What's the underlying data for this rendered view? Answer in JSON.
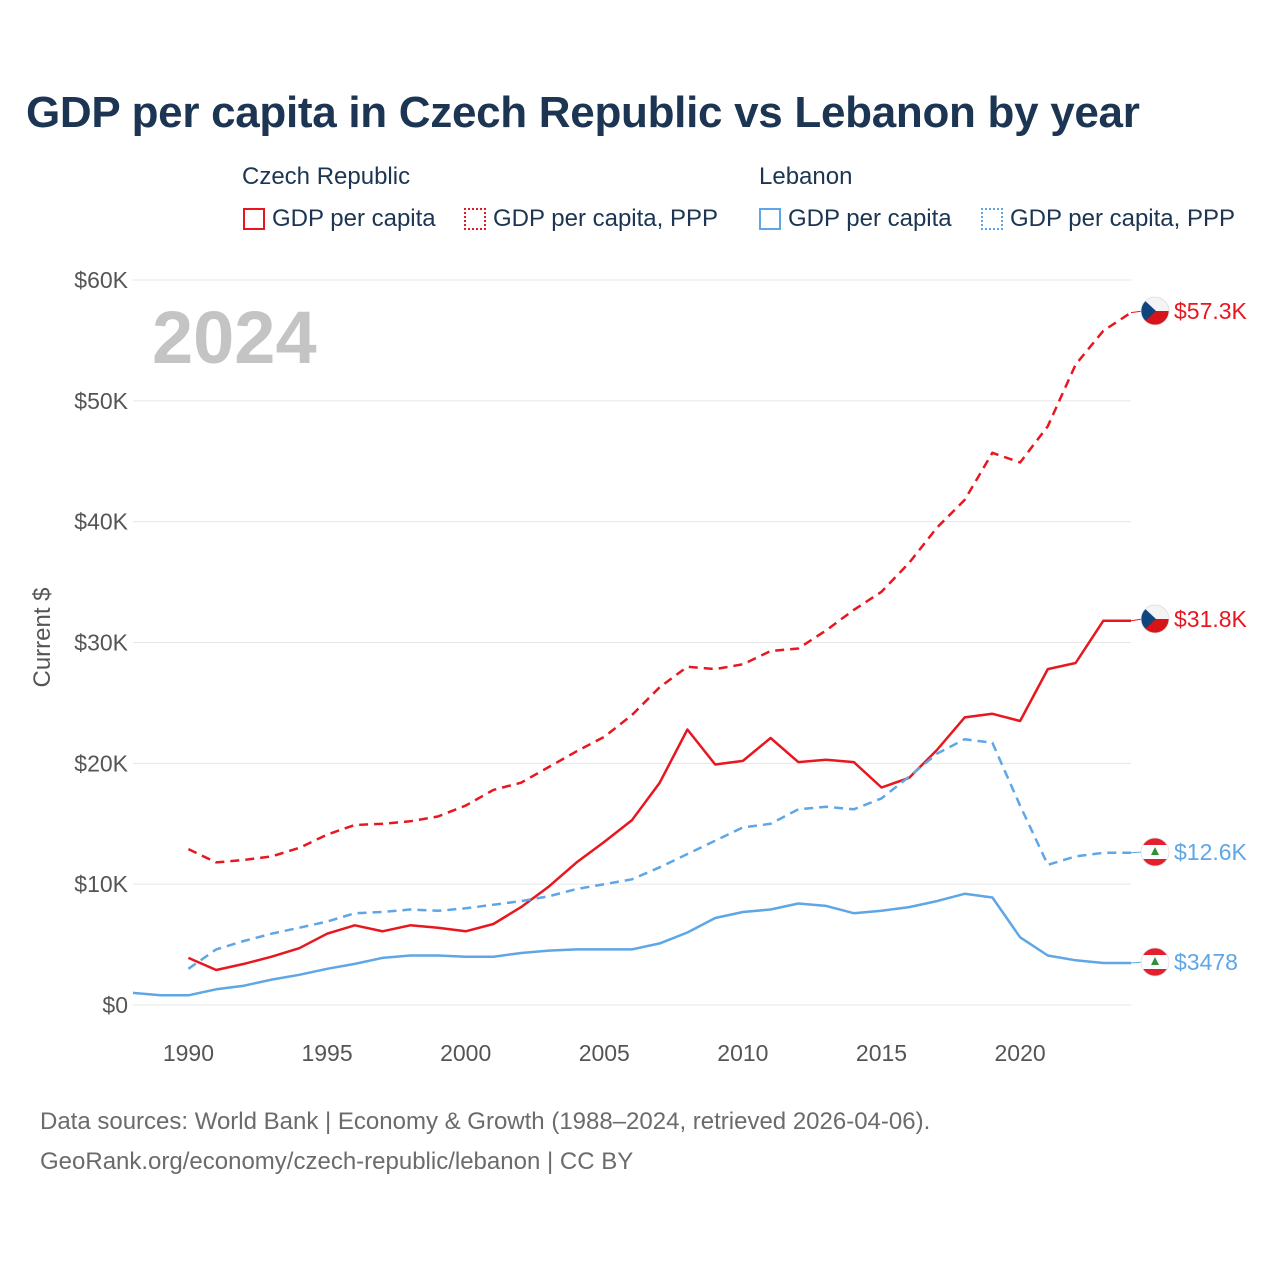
{
  "title": "GDP per capita in Czech Republic vs Lebanon by year",
  "colors": {
    "czech": "#e8171f",
    "lebanon": "#5ea6e6",
    "text": "#1b3553",
    "axis": "#555555",
    "grid": "#e6e6e6",
    "year_watermark": "#c4c4c4"
  },
  "legend": {
    "groups": [
      {
        "title": "Czech Republic",
        "items": [
          {
            "label": "GDP per capita",
            "style": "solid"
          },
          {
            "label": "GDP per capita, PPP",
            "style": "dotted"
          }
        ]
      },
      {
        "title": "Lebanon",
        "items": [
          {
            "label": "GDP per capita",
            "style": "solid"
          },
          {
            "label": "GDP per capita, PPP",
            "style": "dotted"
          }
        ]
      }
    ]
  },
  "year_watermark": "2024",
  "footer": {
    "line1": "Data sources: World Bank | Economy & Growth (1988–2024, retrieved 2026-04-06).",
    "line2": "GeoRank.org/economy/czech-republic/lebanon | CC BY"
  },
  "chart_data": {
    "type": "line",
    "title": "GDP per capita in Czech Republic vs Lebanon by year",
    "xlabel": "",
    "ylabel": "Current $",
    "xlim": [
      1988,
      2024
    ],
    "ylim": [
      0,
      60000
    ],
    "x_ticks": [
      1990,
      1995,
      2000,
      2005,
      2010,
      2015,
      2020
    ],
    "y_ticks": [
      0,
      10000,
      20000,
      30000,
      40000,
      50000,
      60000
    ],
    "y_tick_labels": [
      "$0",
      "$10K",
      "$20K",
      "$30K",
      "$40K",
      "$50K",
      "$60K"
    ],
    "grid": true,
    "series": [
      {
        "name": "Czech Republic — GDP per capita, PPP",
        "country": "czech",
        "dash": "dashed",
        "x": [
          1990,
          1991,
          1992,
          1993,
          1994,
          1995,
          1996,
          1997,
          1998,
          1999,
          2000,
          2001,
          2002,
          2003,
          2004,
          2005,
          2006,
          2007,
          2008,
          2009,
          2010,
          2011,
          2012,
          2013,
          2014,
          2015,
          2016,
          2017,
          2018,
          2019,
          2020,
          2021,
          2022,
          2023,
          2024
        ],
        "values": [
          12900,
          11800,
          12000,
          12300,
          13000,
          14100,
          14900,
          15000,
          15200,
          15600,
          16500,
          17800,
          18400,
          19700,
          21000,
          22200,
          24000,
          26300,
          28000,
          27800,
          28200,
          29300,
          29500,
          31000,
          32700,
          34200,
          36600,
          39500,
          41800,
          45700,
          44900,
          47900,
          53000,
          55800,
          57300
        ],
        "end_label": "$57.3K"
      },
      {
        "name": "Czech Republic — GDP per capita",
        "country": "czech",
        "dash": "solid",
        "x": [
          1990,
          1991,
          1992,
          1993,
          1994,
          1995,
          1996,
          1997,
          1998,
          1999,
          2000,
          2001,
          2002,
          2003,
          2004,
          2005,
          2006,
          2007,
          2008,
          2009,
          2010,
          2011,
          2012,
          2013,
          2014,
          2015,
          2016,
          2017,
          2018,
          2019,
          2020,
          2021,
          2022,
          2023,
          2024
        ],
        "values": [
          3900,
          2900,
          3400,
          4000,
          4700,
          5900,
          6600,
          6100,
          6600,
          6400,
          6100,
          6700,
          8100,
          9800,
          11800,
          13500,
          15300,
          18400,
          22800,
          19900,
          20200,
          22100,
          20100,
          20300,
          20100,
          18000,
          18800,
          21100,
          23800,
          24100,
          23500,
          27800,
          28300,
          31800,
          31800
        ],
        "end_label": "$31.8K"
      },
      {
        "name": "Lebanon — GDP per capita, PPP",
        "country": "lebanon",
        "dash": "dashed",
        "x": [
          1990,
          1991,
          1992,
          1993,
          1994,
          1995,
          1996,
          1997,
          1998,
          1999,
          2000,
          2001,
          2002,
          2003,
          2004,
          2005,
          2006,
          2007,
          2008,
          2009,
          2010,
          2011,
          2012,
          2013,
          2014,
          2015,
          2016,
          2017,
          2018,
          2019,
          2020,
          2021,
          2022,
          2023,
          2024
        ],
        "values": [
          3000,
          4600,
          5300,
          5900,
          6400,
          6900,
          7600,
          7700,
          7900,
          7800,
          8000,
          8300,
          8600,
          9000,
          9600,
          10000,
          10400,
          11400,
          12500,
          13600,
          14700,
          15000,
          16200,
          16400,
          16200,
          17100,
          18900,
          20800,
          22000,
          21700,
          16500,
          11600,
          12300,
          12600,
          12600
        ],
        "end_label": "$12.6K"
      },
      {
        "name": "Lebanon — GDP per capita",
        "country": "lebanon",
        "dash": "solid",
        "x": [
          1988,
          1989,
          1990,
          1991,
          1992,
          1993,
          1994,
          1995,
          1996,
          1997,
          1998,
          1999,
          2000,
          2001,
          2002,
          2003,
          2004,
          2005,
          2006,
          2007,
          2008,
          2009,
          2010,
          2011,
          2012,
          2013,
          2014,
          2015,
          2016,
          2017,
          2018,
          2019,
          2020,
          2021,
          2022,
          2023,
          2024
        ],
        "values": [
          1000,
          800,
          800,
          1300,
          1600,
          2100,
          2500,
          3000,
          3400,
          3900,
          4100,
          4100,
          4000,
          4000,
          4300,
          4500,
          4600,
          4600,
          4600,
          5100,
          6000,
          7200,
          7700,
          7900,
          8400,
          8200,
          7600,
          7800,
          8100,
          8600,
          9200,
          8900,
          5600,
          4100,
          3700,
          3478,
          3478
        ],
        "end_label": "$3478"
      }
    ]
  }
}
